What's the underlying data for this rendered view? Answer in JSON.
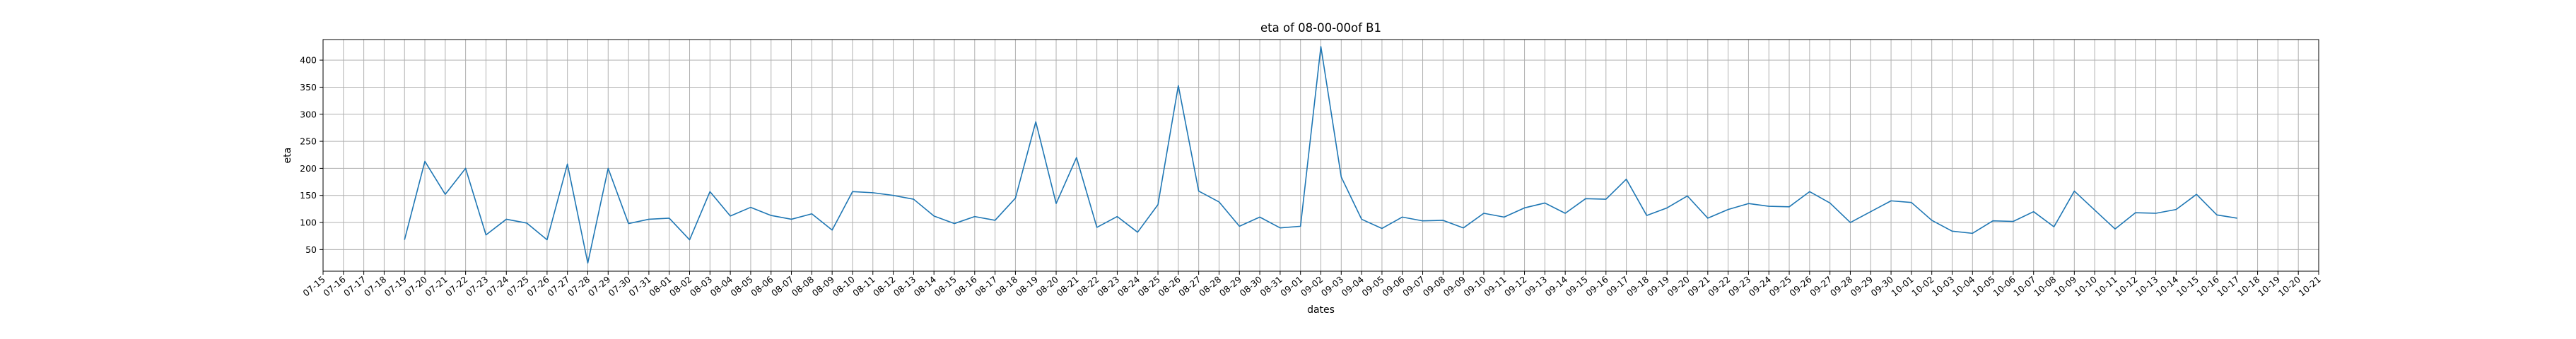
{
  "chart_data": {
    "type": "line",
    "title": "eta of 08-00-00of B1",
    "xlabel": "dates",
    "ylabel": "eta",
    "grid": true,
    "x_ticks": [
      "07-15",
      "07-16",
      "07-17",
      "07-18",
      "07-19",
      "07-20",
      "07-21",
      "07-22",
      "07-23",
      "07-24",
      "07-25",
      "07-26",
      "07-27",
      "07-28",
      "07-29",
      "07-30",
      "07-31",
      "08-01",
      "08-02",
      "08-03",
      "08-04",
      "08-05",
      "08-06",
      "08-07",
      "08-08",
      "08-09",
      "08-10",
      "08-11",
      "08-12",
      "08-13",
      "08-14",
      "08-15",
      "08-16",
      "08-17",
      "08-18",
      "08-19",
      "08-20",
      "08-21",
      "08-22",
      "08-23",
      "08-24",
      "08-25",
      "08-26",
      "08-27",
      "08-28",
      "08-29",
      "08-30",
      "08-31",
      "09-01",
      "09-02",
      "09-03",
      "09-04",
      "09-05",
      "09-06",
      "09-07",
      "09-08",
      "09-09",
      "09-10",
      "09-11",
      "09-12",
      "09-13",
      "09-14",
      "09-15",
      "09-16",
      "09-17",
      "09-18",
      "09-19",
      "09-20",
      "09-21",
      "09-22",
      "09-23",
      "09-24",
      "09-25",
      "09-26",
      "09-27",
      "09-28",
      "09-29",
      "09-30",
      "10-01",
      "10-02",
      "10-03",
      "10-04",
      "10-05",
      "10-06",
      "10-07",
      "10-08",
      "10-09",
      "10-10",
      "10-11",
      "10-12",
      "10-13",
      "10-14",
      "10-15",
      "10-16",
      "10-17",
      "10-18",
      "10-19",
      "10-20",
      "10-21"
    ],
    "y_ticks": [
      50,
      100,
      150,
      200,
      250,
      300,
      350,
      400
    ],
    "ylim": [
      10,
      438
    ],
    "series": [
      {
        "color": "#1f77b4",
        "x": [
          "07-19",
          "07-20",
          "07-21",
          "07-22",
          "07-23",
          "07-24",
          "07-25",
          "07-26",
          "07-27",
          "07-28",
          "07-29",
          "07-30",
          "07-31",
          "08-01",
          "08-02",
          "08-03",
          "08-04",
          "08-05",
          "08-06",
          "08-07",
          "08-08",
          "08-09",
          "08-10",
          "08-11",
          "08-12",
          "08-13",
          "08-14",
          "08-15",
          "08-16",
          "08-17",
          "08-18",
          "08-19",
          "08-20",
          "08-21",
          "08-22",
          "08-23",
          "08-24",
          "08-25",
          "08-26",
          "08-27",
          "08-28",
          "08-29",
          "08-30",
          "08-31",
          "09-01",
          "09-02",
          "09-03",
          "09-04",
          "09-05",
          "09-06",
          "09-07",
          "09-08",
          "09-09",
          "09-10",
          "09-11",
          "09-12",
          "09-13",
          "09-14",
          "09-15",
          "09-16",
          "09-17",
          "09-18",
          "09-19",
          "09-20",
          "09-21",
          "09-22",
          "09-23",
          "09-24",
          "09-25",
          "09-26",
          "09-27",
          "09-28",
          "09-29",
          "09-30",
          "10-01",
          "10-02",
          "10-03",
          "10-04",
          "10-05",
          "10-06",
          "10-07",
          "10-08",
          "10-09",
          "10-10",
          "10-11",
          "10-12",
          "10-13",
          "10-14",
          "10-15",
          "10-16",
          "10-17"
        ],
        "values": [
          68,
          213,
          152,
          200,
          77,
          106,
          99,
          68,
          208,
          25,
          200,
          98,
          106,
          108,
          68,
          157,
          112,
          128,
          113,
          106,
          116,
          86,
          157,
          155,
          150,
          143,
          112,
          98,
          111,
          104,
          145,
          286,
          135,
          220,
          91,
          111,
          82,
          133,
          353,
          158,
          138,
          93,
          110,
          90,
          93,
          425,
          184,
          106,
          89,
          110,
          103,
          104,
          90,
          117,
          110,
          127,
          136,
          117,
          144,
          143,
          180,
          113,
          127,
          149,
          108,
          124,
          135,
          130,
          129,
          157,
          136,
          100,
          120,
          140,
          137,
          104,
          84,
          80,
          103,
          102,
          120,
          92,
          158,
          123,
          88,
          118,
          117,
          124,
          152,
          114,
          108
        ]
      }
    ]
  }
}
